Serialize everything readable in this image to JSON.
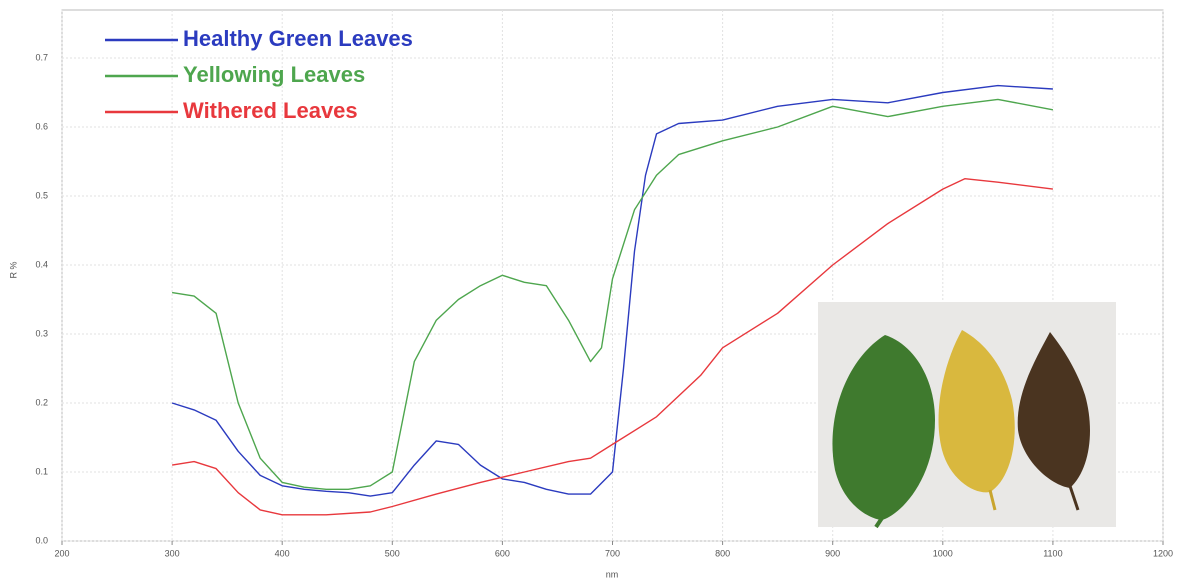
{
  "chart_data": {
    "type": "line",
    "x_label": "nm",
    "y_label": "R %",
    "xlim": [
      200,
      1200
    ],
    "ylim": [
      0,
      0.7
    ],
    "xticks": [
      200,
      300,
      400,
      500,
      600,
      700,
      800,
      900,
      1000,
      1100,
      1200
    ],
    "yticks": [
      {
        "value": 0,
        "label": "0.0"
      },
      0.1,
      0.2,
      0.3,
      0.4,
      0.5,
      0.6,
      0.7
    ],
    "grid": true,
    "legend": "top-left",
    "series": [
      {
        "name": "Healthy Green Leaves",
        "color": "#2b3bbf",
        "x": [
          300,
          320,
          340,
          360,
          380,
          400,
          420,
          440,
          460,
          480,
          500,
          520,
          540,
          560,
          580,
          600,
          620,
          640,
          660,
          680,
          700,
          710,
          720,
          730,
          740,
          760,
          800,
          850,
          900,
          950,
          1000,
          1050,
          1100
        ],
        "values": [
          0.2,
          0.19,
          0.175,
          0.13,
          0.095,
          0.08,
          0.075,
          0.072,
          0.07,
          0.065,
          0.07,
          0.11,
          0.145,
          0.14,
          0.11,
          0.09,
          0.085,
          0.075,
          0.068,
          0.068,
          0.1,
          0.25,
          0.42,
          0.53,
          0.59,
          0.605,
          0.61,
          0.63,
          0.64,
          0.635,
          0.65,
          0.66,
          0.655
        ]
      },
      {
        "name": "Yellowing Leaves",
        "color": "#4ea64e",
        "x": [
          300,
          320,
          340,
          360,
          380,
          400,
          420,
          440,
          460,
          480,
          500,
          520,
          540,
          560,
          580,
          600,
          620,
          640,
          660,
          680,
          690,
          700,
          720,
          740,
          760,
          800,
          850,
          900,
          950,
          1000,
          1050,
          1100
        ],
        "values": [
          0.36,
          0.355,
          0.33,
          0.2,
          0.12,
          0.085,
          0.078,
          0.075,
          0.075,
          0.08,
          0.1,
          0.26,
          0.32,
          0.35,
          0.37,
          0.385,
          0.375,
          0.37,
          0.32,
          0.26,
          0.28,
          0.38,
          0.48,
          0.53,
          0.56,
          0.58,
          0.6,
          0.63,
          0.615,
          0.63,
          0.64,
          0.625
        ]
      },
      {
        "name": "Withered Leaves",
        "color": "#e8383d",
        "x": [
          300,
          320,
          340,
          360,
          380,
          400,
          440,
          480,
          500,
          540,
          580,
          620,
          660,
          680,
          700,
          740,
          780,
          800,
          850,
          900,
          950,
          1000,
          1020,
          1050,
          1100
        ],
        "values": [
          0.11,
          0.115,
          0.105,
          0.07,
          0.045,
          0.038,
          0.038,
          0.042,
          0.05,
          0.068,
          0.085,
          0.1,
          0.115,
          0.12,
          0.14,
          0.18,
          0.24,
          0.28,
          0.33,
          0.4,
          0.46,
          0.51,
          0.525,
          0.52,
          0.51
        ]
      }
    ]
  }
}
